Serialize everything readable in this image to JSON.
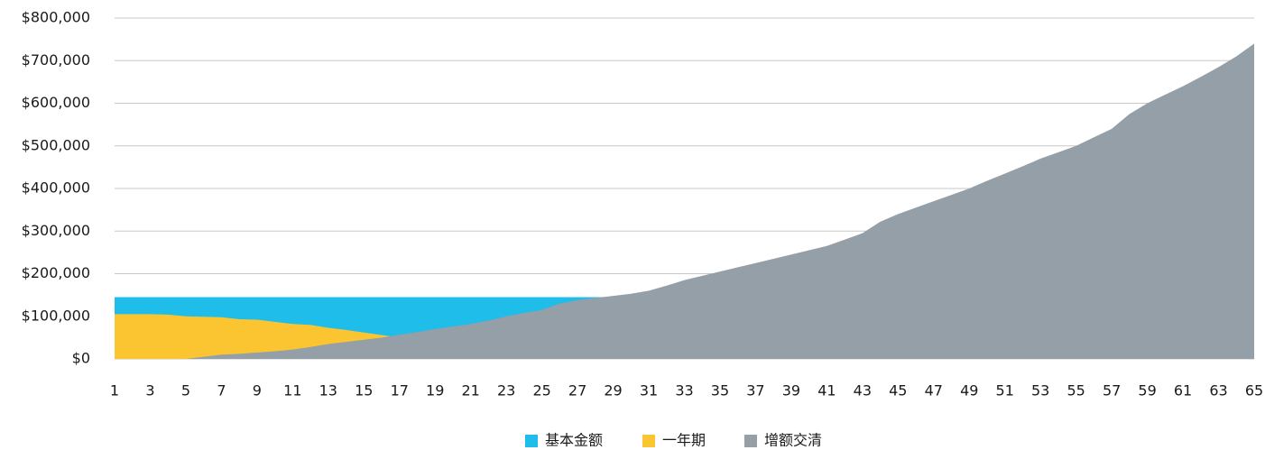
{
  "chart_data": {
    "type": "area",
    "x": [
      1,
      2,
      3,
      4,
      5,
      6,
      7,
      8,
      9,
      10,
      11,
      12,
      13,
      14,
      15,
      16,
      17,
      18,
      19,
      20,
      21,
      22,
      23,
      24,
      25,
      26,
      27,
      28,
      29,
      30,
      31,
      32,
      33,
      34,
      35,
      36,
      37,
      38,
      39,
      40,
      41,
      42,
      43,
      44,
      45,
      46,
      47,
      48,
      49,
      50,
      51,
      52,
      53,
      54,
      55,
      56,
      57,
      58,
      59,
      60,
      61,
      62,
      63,
      64,
      65
    ],
    "xlim": [
      1,
      65
    ],
    "xticks": [
      1,
      3,
      5,
      7,
      9,
      11,
      13,
      15,
      17,
      19,
      21,
      23,
      25,
      27,
      29,
      31,
      33,
      35,
      37,
      39,
      41,
      43,
      45,
      47,
      49,
      51,
      53,
      55,
      57,
      59,
      61,
      63,
      65
    ],
    "ylim": [
      0,
      800000
    ],
    "yticks": [
      {
        "value": 0,
        "label": "$0"
      },
      {
        "value": 100000,
        "label": "$100,000"
      },
      {
        "value": 200000,
        "label": "$200,000"
      },
      {
        "value": 300000,
        "label": "$300,000"
      },
      {
        "value": 400000,
        "label": "$400,000"
      },
      {
        "value": 500000,
        "label": "$500,000"
      },
      {
        "value": 600000,
        "label": "$600,000"
      },
      {
        "value": 700000,
        "label": "$700,000"
      },
      {
        "value": 800000,
        "label": "$800,000"
      }
    ],
    "grid": true,
    "legend": "bottom",
    "series": [
      {
        "name": "基本金额",
        "color": "#1fbdea",
        "values": [
          145000,
          145000,
          145000,
          145000,
          145000,
          145000,
          145000,
          145000,
          145000,
          145000,
          145000,
          145000,
          145000,
          145000,
          145000,
          145000,
          145000,
          145000,
          145000,
          145000,
          145000,
          145000,
          145000,
          145000,
          145000,
          145000,
          145000,
          145000,
          145000,
          145000,
          145000,
          145000,
          145000,
          145000,
          145000,
          145000,
          145000,
          145000,
          145000,
          145000,
          145000,
          145000,
          145000,
          145000,
          145000,
          145000,
          145000,
          145000,
          145000,
          145000,
          145000,
          145000,
          145000,
          145000,
          145000,
          145000,
          145000,
          145000,
          145000,
          145000,
          145000,
          145000,
          145000,
          145000,
          145000
        ]
      },
      {
        "name": "一年期",
        "color": "#fbc531",
        "values": [
          105000,
          105000,
          105000,
          104000,
          100000,
          99000,
          98000,
          93000,
          92000,
          87000,
          82000,
          80000,
          73000,
          68000,
          62000,
          56000,
          50000,
          45000,
          40000,
          35000,
          30000,
          26000,
          22000,
          18000,
          14000,
          10000,
          6000,
          3000,
          0,
          0,
          0,
          0,
          0,
          0,
          0,
          0,
          0,
          0,
          0,
          0,
          0,
          0,
          0,
          0,
          0,
          0,
          0,
          0,
          0,
          0,
          0,
          0,
          0,
          0,
          0,
          0,
          0,
          0,
          0,
          0,
          0,
          0,
          0,
          0,
          0
        ]
      },
      {
        "name": "增额交清",
        "color": "#949fa7",
        "values": [
          0,
          0,
          0,
          0,
          0,
          5000,
          10000,
          12000,
          15000,
          18000,
          22000,
          28000,
          35000,
          40000,
          45000,
          50000,
          57000,
          63000,
          70000,
          76000,
          82000,
          90000,
          100000,
          108000,
          115000,
          130000,
          138000,
          143000,
          148000,
          153000,
          160000,
          172000,
          185000,
          195000,
          205000,
          215000,
          225000,
          235000,
          245000,
          255000,
          265000,
          280000,
          295000,
          322000,
          340000,
          355000,
          370000,
          385000,
          400000,
          418000,
          435000,
          452000,
          470000,
          485000,
          500000,
          520000,
          540000,
          575000,
          600000,
          620000,
          640000,
          662000,
          685000,
          710000,
          740000
        ]
      }
    ]
  }
}
